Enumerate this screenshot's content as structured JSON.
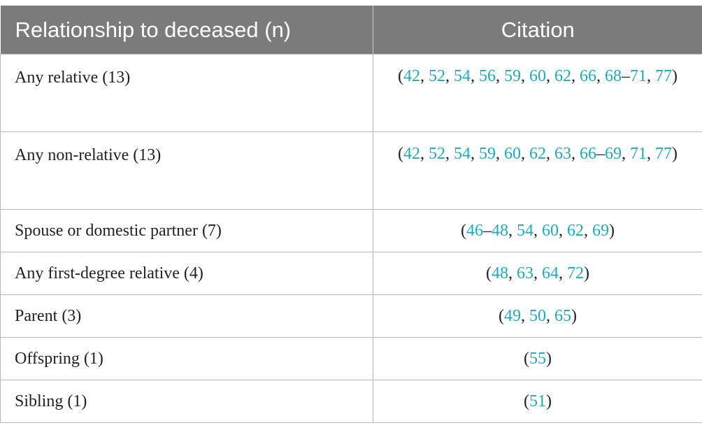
{
  "headers": {
    "relationship": "Relationship to deceased (n)",
    "citation": "Citation"
  },
  "rows": [
    {
      "relationship": "Any relative (13)",
      "citation": [
        {
          "t": "(",
          "ref": false
        },
        {
          "t": "42",
          "ref": true
        },
        {
          "t": ", ",
          "ref": false
        },
        {
          "t": "52",
          "ref": true
        },
        {
          "t": ", ",
          "ref": false
        },
        {
          "t": "54",
          "ref": true
        },
        {
          "t": ", ",
          "ref": false
        },
        {
          "t": "56",
          "ref": true
        },
        {
          "t": ", ",
          "ref": false
        },
        {
          "t": "59",
          "ref": true
        },
        {
          "t": ", ",
          "ref": false
        },
        {
          "t": "60",
          "ref": true
        },
        {
          "t": ", ",
          "ref": false
        },
        {
          "t": "62",
          "ref": true
        },
        {
          "t": ", ",
          "ref": false
        },
        {
          "t": "66",
          "ref": true
        },
        {
          "t": ", ",
          "ref": false
        },
        {
          "t": "68",
          "ref": true
        },
        {
          "t": "–",
          "ref": false
        },
        {
          "t": "71",
          "ref": true
        },
        {
          "t": ", ",
          "ref": false
        },
        {
          "t": "77",
          "ref": true
        },
        {
          "t": ")",
          "ref": false
        }
      ]
    },
    {
      "relationship": "Any non-relative (13)",
      "citation": [
        {
          "t": "(",
          "ref": false
        },
        {
          "t": "42",
          "ref": true
        },
        {
          "t": ", ",
          "ref": false
        },
        {
          "t": "52",
          "ref": true
        },
        {
          "t": ", ",
          "ref": false
        },
        {
          "t": "54",
          "ref": true
        },
        {
          "t": ", ",
          "ref": false
        },
        {
          "t": "59",
          "ref": true
        },
        {
          "t": ", ",
          "ref": false
        },
        {
          "t": "60",
          "ref": true
        },
        {
          "t": ", ",
          "ref": false
        },
        {
          "t": "62",
          "ref": true
        },
        {
          "t": ", ",
          "ref": false
        },
        {
          "t": "63",
          "ref": true
        },
        {
          "t": ", ",
          "ref": false
        },
        {
          "t": "66",
          "ref": true
        },
        {
          "t": "–",
          "ref": false
        },
        {
          "t": "69",
          "ref": true
        },
        {
          "t": ", ",
          "ref": false
        },
        {
          "t": "71",
          "ref": true
        },
        {
          "t": ", ",
          "ref": false
        },
        {
          "t": "77",
          "ref": true
        },
        {
          "t": ")",
          "ref": false
        }
      ]
    },
    {
      "relationship": "Spouse or domestic partner (7)",
      "citation": [
        {
          "t": "(",
          "ref": false
        },
        {
          "t": "46",
          "ref": true
        },
        {
          "t": "–",
          "ref": false
        },
        {
          "t": "48",
          "ref": true
        },
        {
          "t": ", ",
          "ref": false
        },
        {
          "t": "54",
          "ref": true
        },
        {
          "t": ", ",
          "ref": false
        },
        {
          "t": "60",
          "ref": true
        },
        {
          "t": ", ",
          "ref": false
        },
        {
          "t": "62",
          "ref": true
        },
        {
          "t": ", ",
          "ref": false
        },
        {
          "t": "69",
          "ref": true
        },
        {
          "t": ")",
          "ref": false
        }
      ]
    },
    {
      "relationship": "Any first-degree relative (4)",
      "citation": [
        {
          "t": "(",
          "ref": false
        },
        {
          "t": "48",
          "ref": true
        },
        {
          "t": ", ",
          "ref": false
        },
        {
          "t": "63",
          "ref": true
        },
        {
          "t": ", ",
          "ref": false
        },
        {
          "t": "64",
          "ref": true
        },
        {
          "t": ", ",
          "ref": false
        },
        {
          "t": "72",
          "ref": true
        },
        {
          "t": ")",
          "ref": false
        }
      ]
    },
    {
      "relationship": "Parent (3)",
      "citation": [
        {
          "t": "(",
          "ref": false
        },
        {
          "t": "49",
          "ref": true
        },
        {
          "t": ", ",
          "ref": false
        },
        {
          "t": "50",
          "ref": true
        },
        {
          "t": ", ",
          "ref": false
        },
        {
          "t": "65",
          "ref": true
        },
        {
          "t": ")",
          "ref": false
        }
      ]
    },
    {
      "relationship": "Offspring (1)",
      "citation": [
        {
          "t": "(",
          "ref": false
        },
        {
          "t": "55",
          "ref": true
        },
        {
          "t": ")",
          "ref": false
        }
      ]
    },
    {
      "relationship": "Sibling (1)",
      "citation": [
        {
          "t": "(",
          "ref": false
        },
        {
          "t": "51",
          "ref": true
        },
        {
          "t": ")",
          "ref": false
        }
      ]
    }
  ],
  "colors": {
    "header_bg": "#7a7b7a",
    "header_text": "#ffffff",
    "reference_link": "#1fa9b9",
    "body_text": "#231f20",
    "grid_line": "#b8b8b8"
  }
}
